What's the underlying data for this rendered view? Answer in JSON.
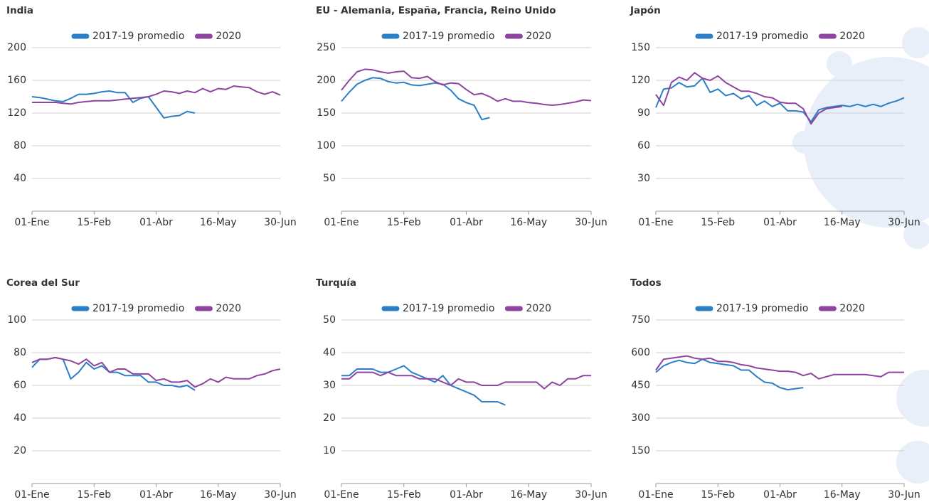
{
  "chart_data": [
    {
      "type": "line",
      "title": "India",
      "categories": [
        "01-Ene",
        null,
        null,
        null,
        null,
        null,
        null,
        null,
        "15-Feb",
        null,
        null,
        null,
        null,
        null,
        null,
        null,
        "01-Abr",
        null,
        null,
        null,
        null,
        null,
        null,
        null,
        "16-May",
        null,
        null,
        null,
        null,
        null,
        null,
        null,
        "30-Jun"
      ],
      "series": [
        {
          "name": "2017-19 promedio",
          "color": "#2a7fc6",
          "values": [
            140,
            139,
            137,
            135,
            134,
            138,
            143,
            143,
            144,
            146,
            147,
            145,
            145,
            133,
            138,
            140,
            127,
            114,
            116,
            117,
            122,
            120,
            null,
            null,
            null,
            null,
            null,
            null,
            null,
            null,
            null,
            null,
            null
          ]
        },
        {
          "name": "2020",
          "color": "#8e44a0",
          "values": [
            133,
            133,
            133,
            133,
            132,
            131,
            133,
            134,
            135,
            135,
            135,
            136,
            137,
            138,
            139,
            140,
            143,
            147,
            146,
            144,
            147,
            145,
            150,
            146,
            150,
            149,
            153,
            152,
            151,
            146,
            143,
            146,
            142
          ]
        }
      ],
      "ylim": [
        0,
        200
      ],
      "yticks": [
        40,
        80,
        120,
        160,
        200
      ],
      "grid": true
    },
    {
      "type": "line",
      "title": "EU - Alemania, España, Francia, Reino Unido",
      "categories": [
        "01-Ene",
        null,
        null,
        null,
        null,
        null,
        null,
        null,
        "15-Feb",
        null,
        null,
        null,
        null,
        null,
        null,
        null,
        "01-Abr",
        null,
        null,
        null,
        null,
        null,
        null,
        null,
        "16-May",
        null,
        null,
        null,
        null,
        null,
        null,
        null,
        "30-Jun"
      ],
      "series": [
        {
          "name": "2017-19 promedio",
          "color": "#2a7fc6",
          "values": [
            168,
            182,
            194,
            200,
            204,
            203,
            198,
            196,
            197,
            193,
            192,
            194,
            196,
            194,
            185,
            172,
            166,
            162,
            140,
            143,
            null,
            null,
            null,
            null,
            null,
            null,
            null,
            null,
            null,
            null,
            null,
            null,
            null
          ]
        },
        {
          "name": "2020",
          "color": "#8e44a0",
          "values": [
            185,
            200,
            213,
            217,
            216,
            213,
            211,
            213,
            214,
            204,
            203,
            206,
            198,
            193,
            196,
            195,
            186,
            178,
            180,
            175,
            168,
            172,
            168,
            168,
            166,
            165,
            163,
            162,
            163,
            165,
            167,
            170,
            169
          ]
        }
      ],
      "ylim": [
        0,
        250
      ],
      "yticks": [
        50,
        100,
        150,
        200,
        250
      ],
      "grid": true
    },
    {
      "type": "line",
      "title": "Japón",
      "categories": [
        "01-Ene",
        null,
        null,
        null,
        null,
        null,
        null,
        null,
        "15-Feb",
        null,
        null,
        null,
        null,
        null,
        null,
        null,
        "01-Abr",
        null,
        null,
        null,
        null,
        null,
        null,
        null,
        "16-May",
        null,
        null,
        null,
        null,
        null,
        null,
        null,
        "30-Jun"
      ],
      "series": [
        {
          "name": "2017-19 promedio",
          "color": "#2a7fc6",
          "values": [
            95,
            112,
            113,
            118,
            114,
            115,
            122,
            109,
            112,
            106,
            108,
            103,
            106,
            97,
            101,
            96,
            99,
            92,
            92,
            91,
            82,
            93,
            95,
            96,
            97,
            96,
            98,
            96,
            98,
            96,
            99,
            101,
            104
          ]
        },
        {
          "name": "2020",
          "color": "#8e44a0",
          "values": [
            107,
            97,
            118,
            123,
            120,
            127,
            122,
            120,
            124,
            118,
            114,
            110,
            110,
            108,
            105,
            104,
            100,
            99,
            99,
            94,
            80,
            90,
            94,
            95,
            96,
            null,
            null,
            null,
            null,
            null,
            null,
            null,
            null
          ]
        }
      ],
      "ylim": [
        0,
        150
      ],
      "yticks": [
        30,
        60,
        90,
        120,
        150
      ],
      "grid": true
    },
    {
      "type": "line",
      "title": "Corea del Sur",
      "categories": [
        "01-Ene",
        null,
        null,
        null,
        null,
        null,
        null,
        null,
        "15-Feb",
        null,
        null,
        null,
        null,
        null,
        null,
        null,
        "01-Abr",
        null,
        null,
        null,
        null,
        null,
        null,
        null,
        "16-May",
        null,
        null,
        null,
        null,
        null,
        null,
        null,
        "30-Jun"
      ],
      "series": [
        {
          "name": "2017-19 promedio",
          "color": "#2a7fc6",
          "values": [
            71,
            76,
            76,
            77,
            76,
            64,
            68,
            74,
            70,
            72,
            68,
            68,
            66,
            66,
            66,
            62,
            62,
            60,
            60,
            59,
            60,
            57,
            null,
            null,
            null,
            null,
            null,
            null,
            null,
            null,
            null,
            null,
            null
          ]
        },
        {
          "name": "2020",
          "color": "#8e44a0",
          "values": [
            74,
            76,
            76,
            77,
            76,
            75,
            73,
            76,
            72,
            74,
            68,
            70,
            70,
            67,
            67,
            67,
            63,
            64,
            62,
            62,
            63,
            59,
            61,
            64,
            62,
            65,
            64,
            64,
            64,
            66,
            67,
            69,
            70
          ]
        }
      ],
      "ylim": [
        0,
        100
      ],
      "yticks": [
        20,
        40,
        60,
        80,
        100
      ],
      "grid": true
    },
    {
      "type": "line",
      "title": "Turquía",
      "categories": [
        "01-Ene",
        null,
        null,
        null,
        null,
        null,
        null,
        null,
        "15-Feb",
        null,
        null,
        null,
        null,
        null,
        null,
        null,
        "01-Abr",
        null,
        null,
        null,
        null,
        null,
        null,
        null,
        "16-May",
        null,
        null,
        null,
        null,
        null,
        null,
        null,
        "30-Jun"
      ],
      "series": [
        {
          "name": "2017-19 promedio",
          "color": "#2a7fc6",
          "values": [
            33,
            33,
            35,
            35,
            35,
            34,
            34,
            35,
            36,
            34,
            33,
            32,
            31,
            33,
            30,
            29,
            28,
            27,
            25,
            25,
            25,
            24,
            null,
            null,
            null,
            null,
            null,
            null,
            null,
            null,
            null,
            null,
            null
          ]
        },
        {
          "name": "2020",
          "color": "#8e44a0",
          "values": [
            32,
            32,
            34,
            34,
            34,
            33,
            34,
            33,
            33,
            33,
            32,
            32,
            32,
            31,
            30,
            32,
            31,
            31,
            30,
            30,
            30,
            31,
            31,
            31,
            31,
            31,
            29,
            31,
            30,
            32,
            32,
            33,
            33
          ]
        }
      ],
      "ylim": [
        0,
        50
      ],
      "yticks": [
        10,
        20,
        30,
        40,
        50
      ],
      "grid": true
    },
    {
      "type": "line",
      "title": "Todos",
      "categories": [
        "01-Ene",
        null,
        null,
        null,
        null,
        null,
        null,
        null,
        "15-Feb",
        null,
        null,
        null,
        null,
        null,
        null,
        null,
        "01-Abr",
        null,
        null,
        null,
        null,
        null,
        null,
        null,
        "16-May",
        null,
        null,
        null,
        null,
        null,
        null,
        null,
        "30-Jun"
      ],
      "series": [
        {
          "name": "2017-19 promedio",
          "color": "#2a7fc6",
          "values": [
            510,
            540,
            555,
            565,
            555,
            550,
            570,
            555,
            550,
            545,
            540,
            520,
            520,
            490,
            465,
            460,
            440,
            430,
            435,
            440,
            null,
            null,
            null,
            null,
            null,
            null,
            null,
            null,
            null,
            null,
            null,
            null,
            null
          ]
        },
        {
          "name": "2020",
          "color": "#8e44a0",
          "values": [
            520,
            570,
            575,
            580,
            585,
            575,
            570,
            575,
            560,
            560,
            555,
            545,
            540,
            530,
            525,
            520,
            515,
            515,
            510,
            495,
            505,
            480,
            490,
            500,
            500,
            500,
            500,
            500,
            495,
            490,
            510,
            510,
            510
          ]
        }
      ],
      "ylim": [
        0,
        750
      ],
      "yticks": [
        150,
        300,
        450,
        600,
        750
      ],
      "grid": true
    }
  ]
}
